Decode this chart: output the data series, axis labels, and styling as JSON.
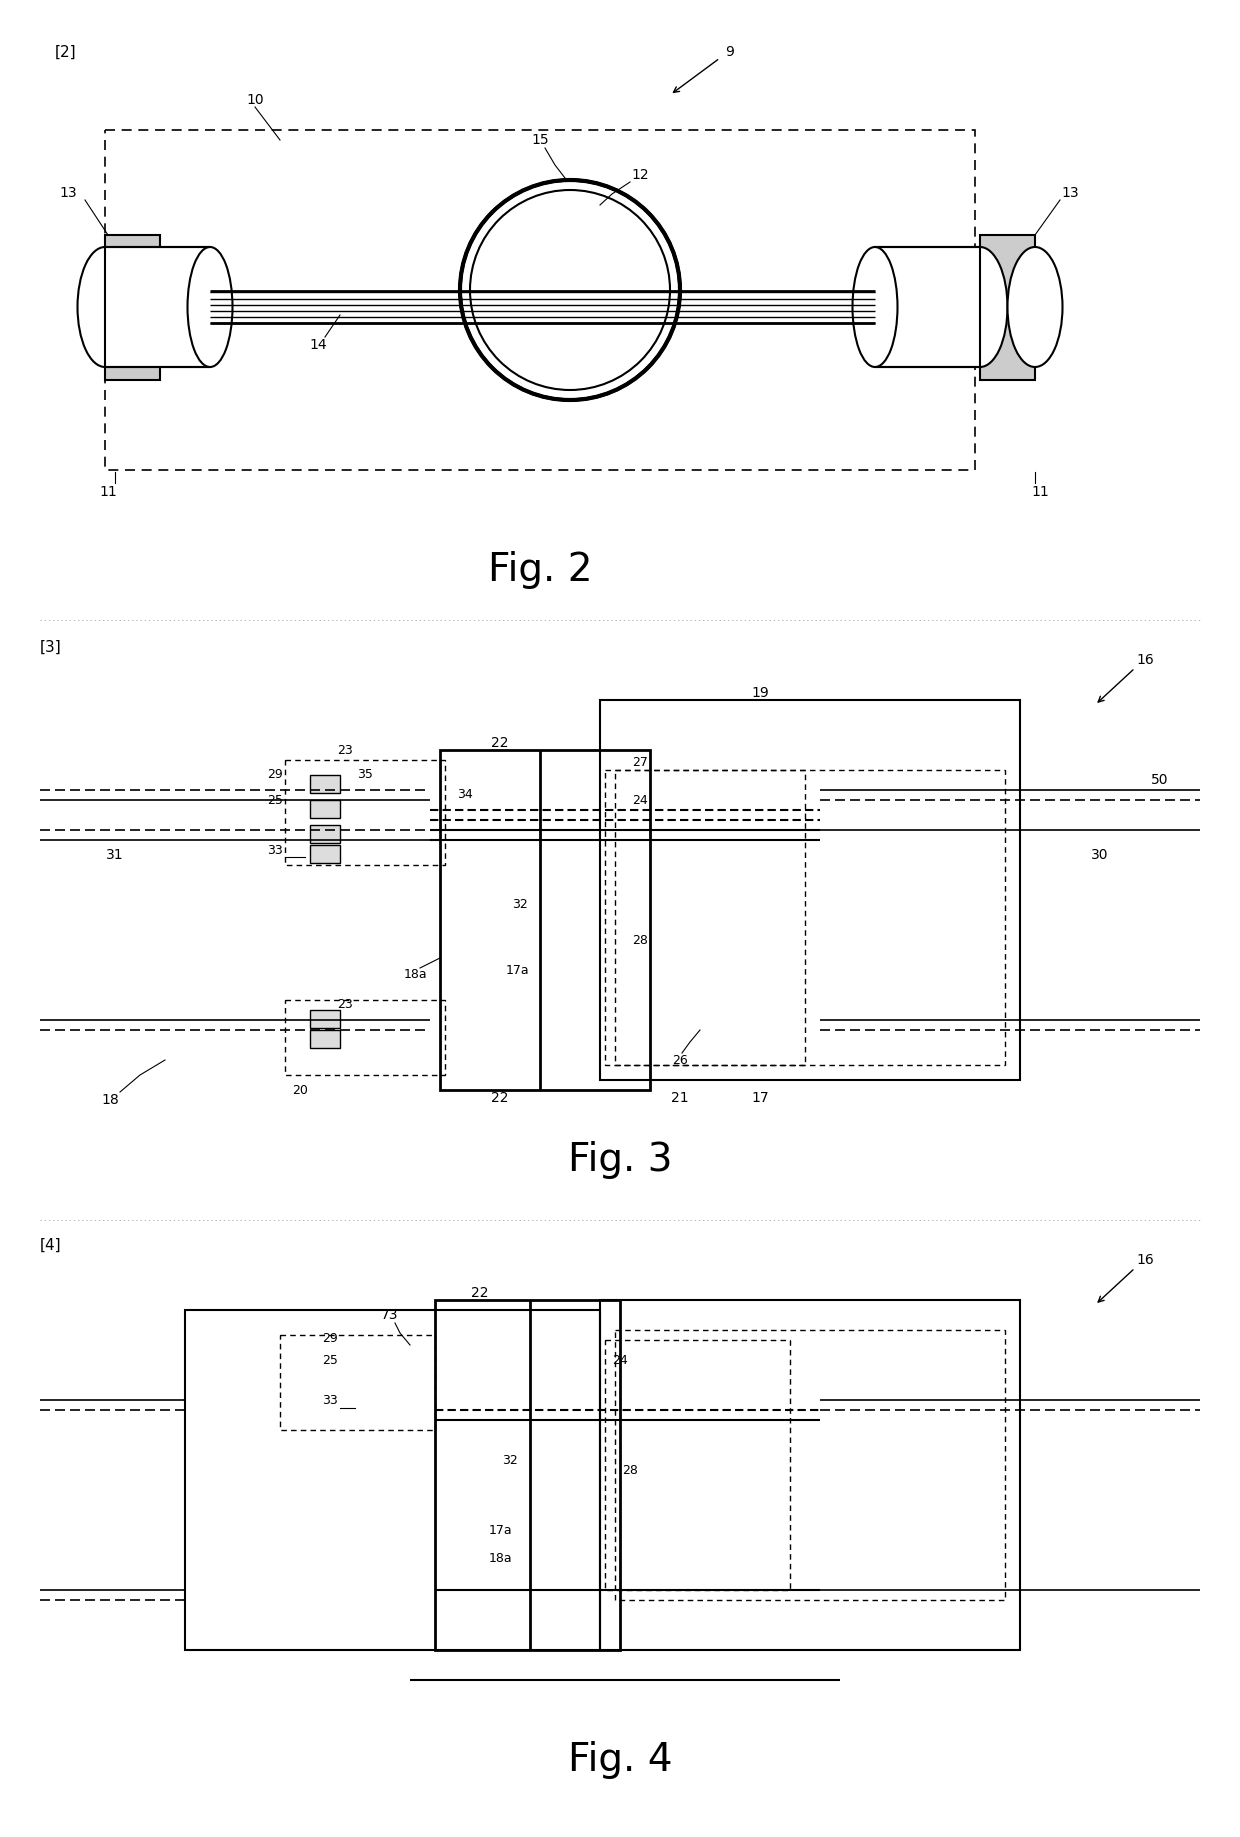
{
  "bg_color": "#ffffff",
  "line_color": "#000000",
  "fig_labels": [
    "Fig. 2",
    "Fig. 3",
    "Fig. 4"
  ],
  "bracket_labels": [
    "[2]",
    "[3]",
    "[4]"
  ],
  "fig2": {
    "label": "Fig. 2",
    "bracket": "[2]",
    "ref9": "9",
    "ref10": "10",
    "ref11": "11",
    "ref12": "12",
    "ref13": "13",
    "ref14": "14",
    "ref15": "15"
  },
  "fig3": {
    "label": "Fig. 3",
    "bracket": "[3]",
    "refs": [
      "16",
      "17",
      "17a",
      "18",
      "18a",
      "19",
      "20",
      "21",
      "22",
      "23",
      "24",
      "25",
      "26",
      "27",
      "28",
      "29",
      "30",
      "31",
      "32",
      "33",
      "34",
      "35",
      "50"
    ]
  },
  "fig4": {
    "label": "Fig. 4",
    "bracket": "[4]",
    "refs": [
      "16",
      "17a",
      "18a",
      "22",
      "24",
      "25",
      "28",
      "29",
      "32",
      "33",
      "73"
    ]
  }
}
